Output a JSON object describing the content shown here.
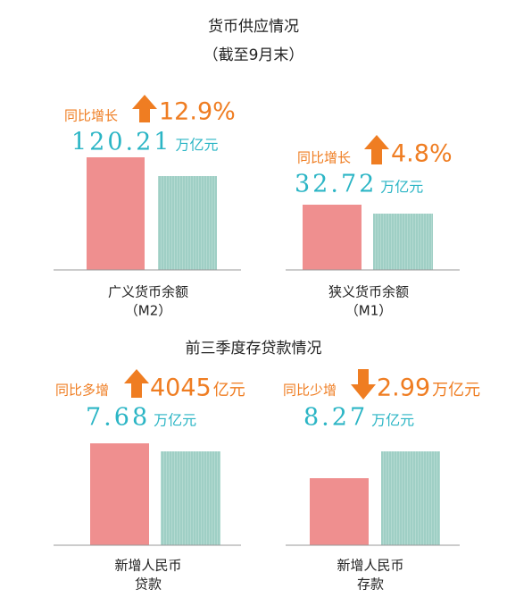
{
  "title": "货币供应情况",
  "subtitle": "（截至9月末）",
  "section_title": "前三季度存贷款情况",
  "panels": [
    {
      "growth_label": "同比增长",
      "growth_value": "12.9%",
      "amount": "120.21",
      "amount_unit": "万亿元",
      "label_line1": "广义货币余额",
      "label_line2": "（M2）"
    },
    {
      "growth_label": "同比增长",
      "growth_value": "4.8%",
      "amount": "32.72",
      "amount_unit": "万亿元",
      "label_line1": "狭义货币余额",
      "label_line2": "（M1）"
    },
    {
      "growth_label": "同比多增",
      "growth_value": "4045",
      "growth_unit": "亿元",
      "amount": "7.68",
      "amount_unit": "万亿元",
      "label_line1": "新增人民币",
      "label_line2": "贷款"
    },
    {
      "growth_label": "同比少增",
      "growth_value": "2.99",
      "growth_unit": "万亿元",
      "amount": "8.27",
      "amount_unit": "万亿元",
      "label_line1": "新增人民币",
      "label_line2": "存款"
    }
  ]
}
